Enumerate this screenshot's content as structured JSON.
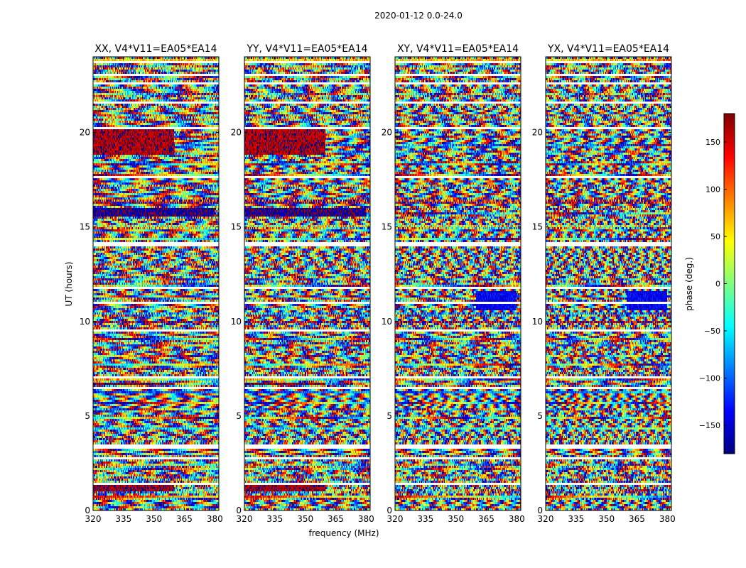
{
  "figure": {
    "suptitle": "2020-01-12 0.0-24.0"
  },
  "chart_data": {
    "type": "heatmap",
    "title": "2020-01-12 0.0-24.0",
    "xlabel": "frequency (MHz)",
    "ylabel": "UT (hours)",
    "xlim": [
      320,
      382
    ],
    "ylim": [
      0,
      24
    ],
    "xticks": [
      320,
      335,
      350,
      365,
      380
    ],
    "yticks": [
      0,
      5,
      10,
      15,
      20
    ],
    "panels": [
      {
        "name": "XX",
        "title": "XX, V4*V11=EA05*EA14"
      },
      {
        "name": "YY",
        "title": "YY, V4*V11=EA05*EA14"
      },
      {
        "name": "XY",
        "title": "XY, V4*V11=EA05*EA14"
      },
      {
        "name": "YX",
        "title": "YX, V4*V11=EA05*EA14"
      }
    ],
    "colorbar": {
      "label": "phase (deg.)",
      "range": [
        -180,
        180
      ],
      "ticks": [
        -150,
        -100,
        -50,
        0,
        50,
        100,
        150
      ],
      "tick_labels": [
        "−150",
        "−100",
        "−50",
        "0",
        "50",
        "100",
        "150"
      ],
      "colormap": [
        "#00007f",
        "#0000ff",
        "#007fff",
        "#00ffff",
        "#7fff7f",
        "#ffff00",
        "#ff7f00",
        "#ff0000",
        "#7f0000"
      ]
    },
    "flagged_gaps_ut_hours": [
      [
        0.1,
        0.15
      ],
      [
        0.55,
        0.6
      ],
      [
        1.35,
        1.5
      ],
      [
        2.7,
        2.8
      ],
      [
        3.3,
        3.45
      ],
      [
        6.4,
        6.5
      ],
      [
        7.0,
        7.1
      ],
      [
        9.45,
        9.55
      ],
      [
        10.9,
        11.0
      ],
      [
        11.75,
        11.85
      ],
      [
        14.0,
        14.15
      ],
      [
        16.4,
        16.5
      ],
      [
        17.6,
        17.7
      ],
      [
        20.2,
        20.3
      ],
      [
        21.55,
        21.6
      ],
      [
        22.5,
        22.7
      ],
      [
        23.0,
        23.1
      ],
      [
        23.7,
        23.75
      ]
    ],
    "coherent_features": [
      {
        "panels": [
          "XX",
          "YY"
        ],
        "ut": [
          18.8,
          20.3
        ],
        "freq": [
          320,
          360
        ],
        "phase_deg": 165,
        "description": "red/orange"
      },
      {
        "panels": [
          "XX",
          "YY"
        ],
        "ut": [
          15.6,
          16.0
        ],
        "freq": [
          320,
          380
        ],
        "phase_deg": -170,
        "description": "dark red band"
      },
      {
        "panels": [
          "XX",
          "YY"
        ],
        "ut": [
          6.6,
          6.8
        ],
        "freq": [
          320,
          360
        ],
        "phase_deg": 175,
        "description": "dark red band"
      },
      {
        "panels": [
          "XX",
          "YY"
        ],
        "ut": [
          1.0,
          1.3
        ],
        "freq": [
          320,
          360
        ],
        "phase_deg": 170,
        "description": "red band"
      },
      {
        "panels": [
          "XY",
          "YX"
        ],
        "ut": [
          10.6,
          11.6
        ],
        "freq": [
          360,
          380
        ],
        "phase_deg": -140,
        "description": "blue"
      }
    ]
  }
}
